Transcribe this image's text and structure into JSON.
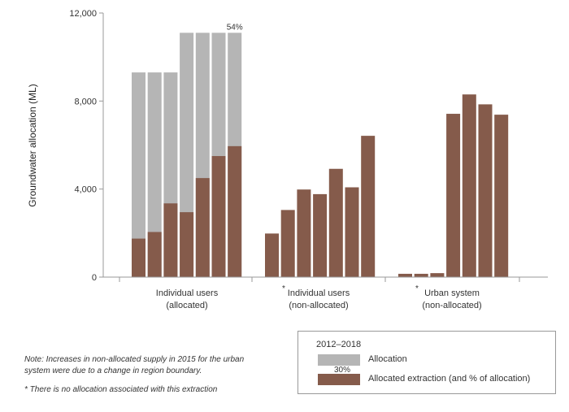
{
  "chart_data": {
    "type": "bar",
    "ylabel": "Groundwater allocation (ML)",
    "ylim": [
      0,
      12000
    ],
    "yticks": [
      0,
      4000,
      8000,
      12000
    ],
    "ytick_labels": [
      "0",
      "4,000",
      "8,000",
      "12,000"
    ],
    "groups": [
      {
        "label_line1": "Individual users",
        "label_line2": "(allocated)",
        "asterisk": "",
        "allocation": [
          9300,
          9300,
          9300,
          11100,
          11100,
          11100,
          11100
        ],
        "extraction": [
          1750,
          2050,
          3350,
          2950,
          4500,
          5500,
          5950
        ]
      },
      {
        "label_line1": "Individual users",
        "label_line2": "(non-allocated)",
        "asterisk": "*",
        "allocation": [],
        "extraction": [
          1980,
          3050,
          3980,
          3770,
          4920,
          4080,
          6420
        ]
      },
      {
        "label_line1": "Urban system",
        "label_line2": "(non-allocated)",
        "asterisk": "*",
        "allocation": [],
        "extraction": [
          150,
          150,
          180,
          7420,
          8300,
          7850,
          7380
        ]
      }
    ],
    "annotations": [
      {
        "group": 0,
        "bar": 6,
        "text": "54%"
      }
    ],
    "colors": {
      "allocation": "#b5b5b5",
      "extraction": "#855b4b",
      "axis": "#999999"
    }
  },
  "legend": {
    "title": "2012–2018",
    "allocation_label": "Allocation",
    "extraction_label": "Allocated extraction (and % of allocation)",
    "extraction_pct": "30%"
  },
  "notes": {
    "note1": "Note: Increases in non-allocated supply in 2015 for the urban system were due to a change in region boundary.",
    "note2": "* There is no allocation associated with this extraction"
  }
}
